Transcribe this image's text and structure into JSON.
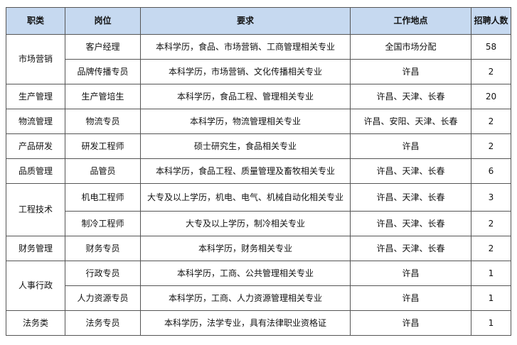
{
  "headers": [
    "职类",
    "岗位",
    "要求",
    "工作地点",
    "招聘人数"
  ],
  "header_bg": "#c6d9f0",
  "groups": [
    {
      "category": "市场营销",
      "rows": [
        {
          "position": "客户经理",
          "requirement": "本科学历，食品、市场营销、工商管理相关专业",
          "location": "全国市场分配",
          "count": "58"
        },
        {
          "position": "品牌传播专员",
          "requirement": "本科学历，市场营销、文化传播相关专业",
          "location": "许昌",
          "count": "2"
        }
      ]
    },
    {
      "category": "生产管理",
      "rows": [
        {
          "position": "生产管培生",
          "requirement": "本科学历，食品工程、管理相关专业",
          "location": "许昌、天津、长春",
          "count": "20"
        }
      ]
    },
    {
      "category": "物流管理",
      "rows": [
        {
          "position": "物流专员",
          "requirement": "本科学历，物流管理相关专业",
          "location": "许昌、安阳、天津、长春",
          "count": "2"
        }
      ]
    },
    {
      "category": "产品研发",
      "rows": [
        {
          "position": "研发工程师",
          "requirement": "硕士研究生，食品相关专业",
          "location": "许昌",
          "count": "2"
        }
      ]
    },
    {
      "category": "品质管理",
      "rows": [
        {
          "position": "品管员",
          "requirement": "本科学历，食品工程、质量管理及畜牧相关专业",
          "location": "许昌、天津、长春",
          "count": "6"
        }
      ]
    },
    {
      "category": "工程技术",
      "rows": [
        {
          "position": "机电工程师",
          "requirement": "大专及以上学历，机电、电气、机械自动化相关专业",
          "location": "许昌、天津、长春",
          "count": "3"
        },
        {
          "position": "制冷工程师",
          "requirement": "大专及以上学历，制冷相关专业",
          "location": "许昌、天津、长春",
          "count": "2"
        }
      ]
    },
    {
      "category": "财务管理",
      "rows": [
        {
          "position": "财务专员",
          "requirement": "本科学历，财务相关专业",
          "location": "许昌、天津、长春",
          "count": "2"
        }
      ]
    },
    {
      "category": "人事行政",
      "rows": [
        {
          "position": "行政专员",
          "requirement": "本科学历，工商、公共管理相关专业",
          "location": "许昌",
          "count": "1"
        },
        {
          "position": "人力资源专员",
          "requirement": "本科学历，工商、人力资源管理相关专业",
          "location": "许昌",
          "count": "1"
        }
      ]
    },
    {
      "category": "法务类",
      "rows": [
        {
          "position": "法务专员",
          "requirement": "本科学历，法学专业，具有法律职业资格证",
          "location": "许昌",
          "count": "1"
        }
      ]
    }
  ]
}
